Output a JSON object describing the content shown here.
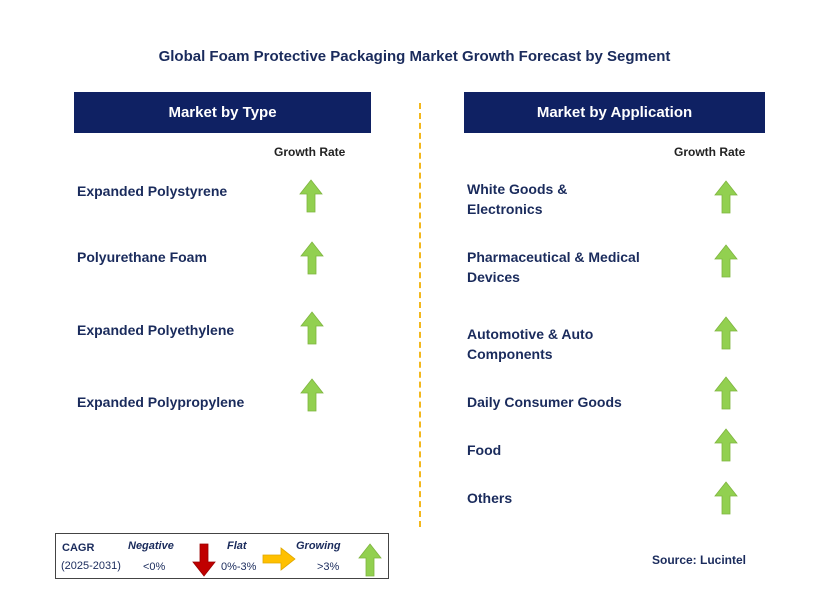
{
  "title": "Global Foam Protective Packaging Market Growth Forecast by Segment",
  "left_panel": {
    "header": "Market by Type",
    "growth_label": "Growth Rate",
    "items": [
      {
        "label": "Expanded Polystyrene",
        "trend": "growing"
      },
      {
        "label": "Polyurethane Foam",
        "trend": "growing"
      },
      {
        "label": "Expanded Polyethylene",
        "trend": "growing"
      },
      {
        "label": "Expanded Polypropylene",
        "trend": "growing"
      }
    ]
  },
  "right_panel": {
    "header": "Market by Application",
    "growth_label": "Growth Rate",
    "items": [
      {
        "label_line1": "White Goods &",
        "label_line2": "Electronics",
        "trend": "growing"
      },
      {
        "label_line1": "Pharmaceutical & Medical",
        "label_line2": "Devices",
        "trend": "growing"
      },
      {
        "label_line1": "Automotive & Auto",
        "label_line2": "Components",
        "trend": "growing"
      },
      {
        "label_line1": "Daily Consumer Goods",
        "label_line2": "",
        "trend": "growing"
      },
      {
        "label_line1": "Food",
        "label_line2": "",
        "trend": "growing"
      },
      {
        "label_line1": "Others",
        "label_line2": "",
        "trend": "growing"
      }
    ]
  },
  "legend": {
    "cagr": "CAGR",
    "period": "(2025-2031)",
    "negative": {
      "label": "Negative",
      "range": "<0%",
      "icon": "down-arrow-icon",
      "color": "#c00000"
    },
    "flat": {
      "label": "Flat",
      "range": "0%-3%",
      "icon": "right-arrow-icon",
      "color": "#ffc000"
    },
    "growing": {
      "label": "Growing",
      "range": ">3%",
      "icon": "up-arrow-icon",
      "color": "#92d050"
    }
  },
  "source": "Source: Lucintel",
  "colors": {
    "header_bg": "#0f2163",
    "text": "#1a2b5c",
    "divider": "#f3b71c",
    "up_arrow": "#92d050"
  }
}
